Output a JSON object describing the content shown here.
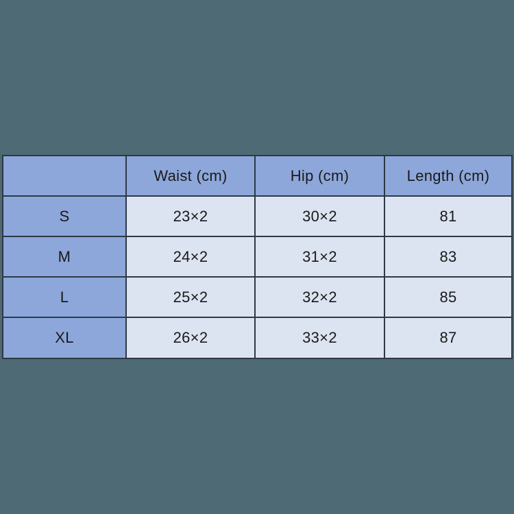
{
  "page": {
    "background_color": "#4D6A75"
  },
  "colors": {
    "header_fill": "#8DA7DB",
    "cell_fill": "#DCE3F1",
    "grid_line": "#2D3844",
    "text": "#1A1A1A"
  },
  "chart_data": {
    "type": "table",
    "columns": [
      "",
      "Waist (cm)",
      "Hip (cm)",
      "Length (cm)"
    ],
    "rows": [
      [
        "S",
        "23×2",
        "30×2",
        "81"
      ],
      [
        "M",
        "24×2",
        "31×2",
        "83"
      ],
      [
        "L",
        "25×2",
        "32×2",
        "85"
      ],
      [
        "XL",
        "26×2",
        "33×2",
        "87"
      ]
    ]
  }
}
